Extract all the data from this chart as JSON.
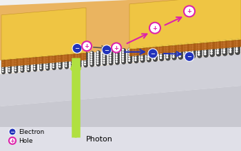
{
  "fig_width": 3.5,
  "fig_height": 2.2,
  "dpi": 100,
  "bg_color": "#f0f0f0",
  "photon_color": "#b0e040",
  "electron_color": "#2233bb",
  "hole_color": "#dd22aa",
  "legend_electron_label": "Electron",
  "legend_hole_label": "Hole",
  "photon_label": "Photon"
}
